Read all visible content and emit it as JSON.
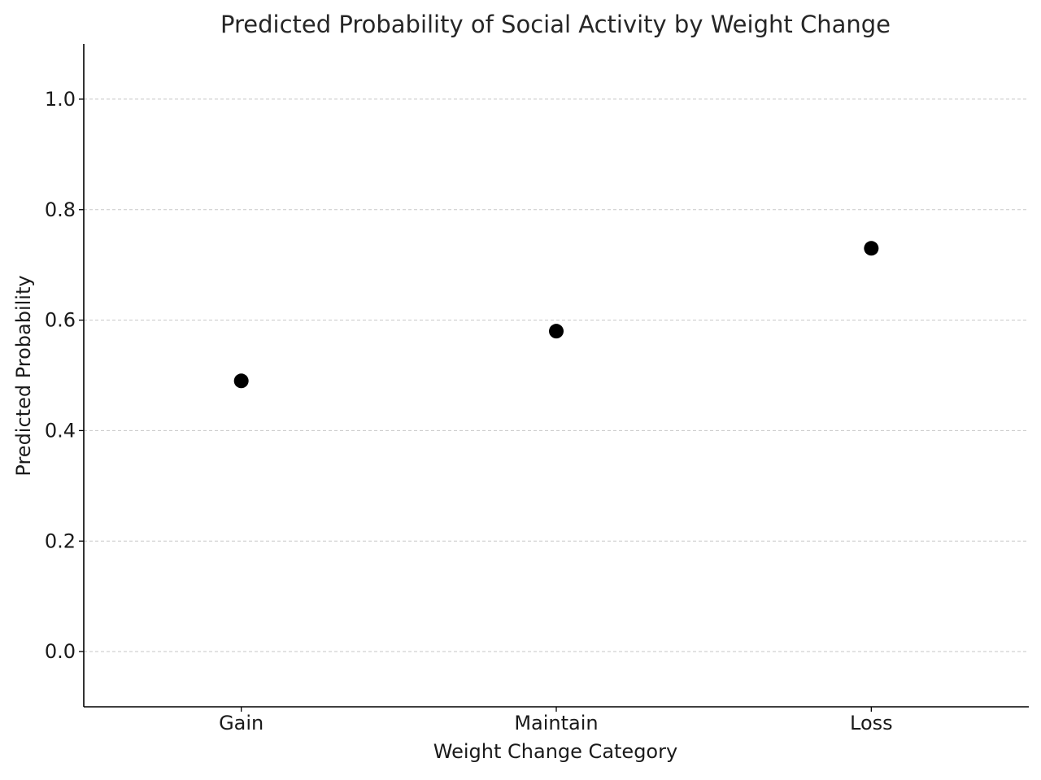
{
  "chart_data": {
    "type": "scatter",
    "title": "Predicted Probability of Social Activity by Weight Change",
    "xlabel": "Weight Change Category",
    "ylabel": "Predicted Probability",
    "categories": [
      "Gain",
      "Maintain",
      "Loss"
    ],
    "values": [
      0.49,
      0.58,
      0.73
    ],
    "ylim": [
      -0.1,
      1.1
    ],
    "yticks": [
      0.0,
      0.2,
      0.4,
      0.6,
      0.8,
      1.0
    ],
    "ytick_labels": [
      "0.0",
      "0.2",
      "0.4",
      "0.6",
      "0.8",
      "1.0"
    ],
    "grid": "y-axis dashed",
    "legend": "none",
    "marker_color": "#000000"
  }
}
